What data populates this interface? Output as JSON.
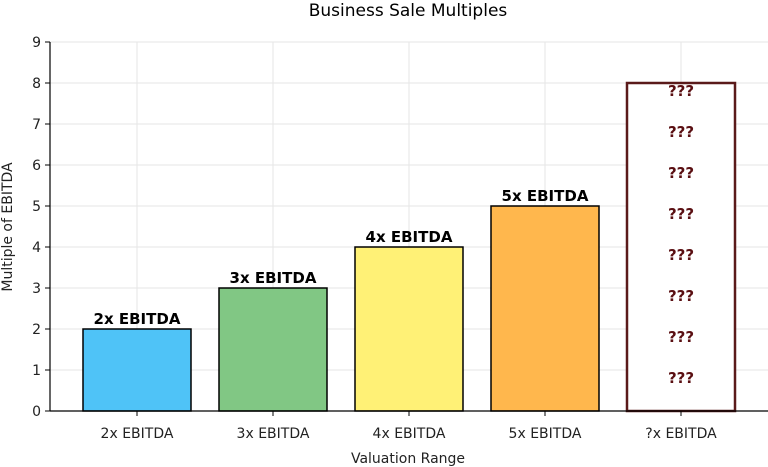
{
  "chart_data": {
    "type": "bar",
    "title": "Business Sale Multiples",
    "xlabel": "Valuation Range",
    "ylabel": "Multiple of EBITDA",
    "ylim": [
      0,
      9
    ],
    "yticks": [
      "0",
      "1",
      "2",
      "3",
      "4",
      "5",
      "6",
      "7",
      "8",
      "9"
    ],
    "grid": true,
    "categories": [
      "2x EBITDA",
      "3x EBITDA",
      "4x EBITDA",
      "5x EBITDA",
      "?x EBITDA"
    ],
    "values": [
      2,
      3,
      4,
      5,
      8
    ],
    "bar_labels": [
      "2x EBITDA",
      "3x EBITDA",
      "4x EBITDA",
      "5x EBITDA",
      ""
    ],
    "colors": [
      "#4fc3f7",
      "#81c784",
      "#fff176",
      "#ffb74d",
      "#ffffff"
    ],
    "edge_colors": [
      "#000000",
      "#000000",
      "#000000",
      "#000000",
      "#5a1a1a"
    ],
    "mystery_bar": {
      "category": "?x EBITDA",
      "label": "???",
      "label_positions": [
        1,
        2,
        3,
        4,
        5,
        6,
        7,
        8
      ]
    }
  }
}
